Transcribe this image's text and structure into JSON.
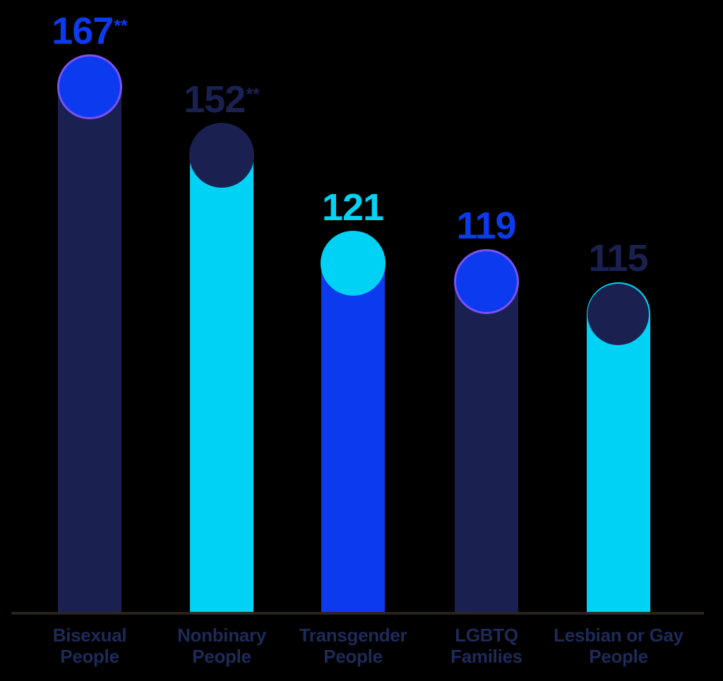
{
  "background_color": "#000000",
  "chart_data": {
    "type": "bar",
    "categories": [
      "Bisexual People",
      "Nonbinary People",
      "Transgender People",
      "LGBTQ Families",
      "Lesbian or Gay People"
    ],
    "values": [
      167,
      152,
      121,
      119,
      115
    ],
    "value_annotations": [
      "**",
      "**",
      "",
      "",
      ""
    ],
    "grid": "off",
    "legend": "none",
    "background": "#000000",
    "axis_line_color": "#2b2623",
    "category_label_color": "#1e2a58",
    "palette": {
      "navy": "#1a2151",
      "blue": "#0c3aef",
      "cyan": "#00d2f5",
      "violet_ring": "#7b52f2"
    },
    "bars": [
      {
        "label_line1": "Bisexual",
        "label_line2": "People",
        "value": "167",
        "suffix": "**",
        "bar_color": "#1a2151",
        "dot_color": "#0c3aef",
        "dot_ring_color": "#7b52f2",
        "value_color": "#0c3aef"
      },
      {
        "label_line1": "Nonbinary",
        "label_line2": "People",
        "value": "152",
        "suffix": "**",
        "bar_color": "#00d2f5",
        "dot_color": "#1a2151",
        "dot_ring_color": "",
        "value_color": "#1a2151"
      },
      {
        "label_line1": "Transgender",
        "label_line2": "People",
        "value": "121",
        "suffix": "",
        "bar_color": "#0c3aef",
        "dot_color": "#00d2f5",
        "dot_ring_color": "",
        "value_color": "#00d2f5"
      },
      {
        "label_line1": "LGBTQ",
        "label_line2": "Families",
        "value": "119",
        "suffix": "",
        "bar_color": "#1a2151",
        "dot_color": "#0c3aef",
        "dot_ring_color": "#7b52f2",
        "value_color": "#0c3aef"
      },
      {
        "label_line1": "Lesbian or Gay",
        "label_line2": "People",
        "value": "115",
        "suffix": "",
        "bar_color": "#00d2f5",
        "dot_color": "#1a2151",
        "dot_ring_color": "",
        "value_color": "#1a2151"
      }
    ]
  }
}
